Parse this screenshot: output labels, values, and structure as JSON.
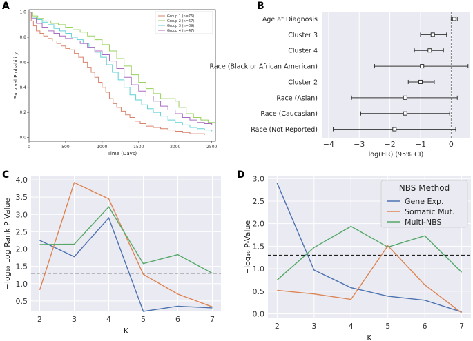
{
  "panel_labels": {
    "a": "A",
    "b": "B",
    "c": "C",
    "d": "D"
  },
  "colors": {
    "blue": "#4c72b0",
    "orange": "#dd8452",
    "green": "#55a868",
    "g1": "#d9826b",
    "g2": "#99d05e",
    "g3": "#62d0d6",
    "g4": "#a86ec2",
    "bg": "#eaeaf2"
  },
  "chart_data": [
    {
      "id": "A",
      "type": "line",
      "title": "",
      "xlabel": "Time (Days)",
      "ylabel": "Survival Probability",
      "xlim": [
        0,
        2550
      ],
      "ylim": [
        -0.03,
        1.02
      ],
      "xticks": [
        "0",
        "500",
        "1000",
        "1500",
        "2000",
        "2500"
      ],
      "yticks": [
        "0.0",
        "0.2",
        "0.4",
        "0.6",
        "0.8",
        "1.0"
      ],
      "legend_position": "top-right",
      "series": [
        {
          "name": "Group 1 (n=76)",
          "color": "#d9826b",
          "step": true,
          "x": [
            0,
            30,
            60,
            100,
            150,
            200,
            260,
            320,
            380,
            440,
            500,
            560,
            620,
            680,
            740,
            800,
            850,
            900,
            950,
            1000,
            1050,
            1100,
            1150,
            1200,
            1260,
            1320,
            1380,
            1450,
            1520,
            1600,
            1700,
            1800,
            1900,
            2000,
            2100,
            2200,
            2300,
            2400
          ],
          "y": [
            1.0,
            0.93,
            0.89,
            0.85,
            0.83,
            0.81,
            0.79,
            0.77,
            0.75,
            0.73,
            0.71,
            0.7,
            0.67,
            0.64,
            0.6,
            0.56,
            0.52,
            0.48,
            0.44,
            0.4,
            0.36,
            0.31,
            0.27,
            0.24,
            0.21,
            0.18,
            0.16,
            0.13,
            0.11,
            0.09,
            0.08,
            0.07,
            0.06,
            0.05,
            0.04,
            0.03,
            0.03,
            0.02
          ]
        },
        {
          "name": "Group 2 (n=67)",
          "color": "#99d05e",
          "step": true,
          "x": [
            0,
            50,
            120,
            200,
            300,
            400,
            500,
            600,
            700,
            800,
            900,
            1000,
            1100,
            1200,
            1300,
            1400,
            1500,
            1600,
            1700,
            1800,
            1900,
            2000,
            2050,
            2150,
            2250,
            2350,
            2450,
            2550
          ],
          "y": [
            1.0,
            0.97,
            0.95,
            0.93,
            0.91,
            0.9,
            0.88,
            0.86,
            0.84,
            0.81,
            0.78,
            0.74,
            0.69,
            0.63,
            0.57,
            0.5,
            0.44,
            0.39,
            0.35,
            0.31,
            0.31,
            0.29,
            0.24,
            0.19,
            0.16,
            0.14,
            0.12,
            0.12
          ]
        },
        {
          "name": "Group 3 (n=89)",
          "color": "#62d0d6",
          "step": true,
          "x": [
            0,
            40,
            100,
            180,
            260,
            340,
            420,
            500,
            580,
            660,
            740,
            820,
            900,
            980,
            1060,
            1140,
            1220,
            1300,
            1380,
            1460,
            1540,
            1620,
            1700,
            1800,
            1900,
            2000,
            2100,
            2200,
            2300,
            2400,
            2500
          ],
          "y": [
            1.0,
            0.96,
            0.94,
            0.92,
            0.9,
            0.87,
            0.85,
            0.83,
            0.8,
            0.78,
            0.75,
            0.72,
            0.68,
            0.64,
            0.58,
            0.52,
            0.46,
            0.4,
            0.34,
            0.3,
            0.26,
            0.23,
            0.2,
            0.17,
            0.14,
            0.12,
            0.1,
            0.08,
            0.07,
            0.06,
            0.05
          ]
        },
        {
          "name": "Group 4 (n=47)",
          "color": "#a86ec2",
          "step": true,
          "x": [
            0,
            40,
            100,
            180,
            260,
            340,
            420,
            500,
            600,
            700,
            800,
            900,
            1000,
            1100,
            1200,
            1300,
            1400,
            1500,
            1600,
            1700,
            1800,
            1900,
            2000,
            2100,
            2200,
            2300,
            2400,
            2500
          ],
          "y": [
            1.0,
            0.95,
            0.91,
            0.88,
            0.85,
            0.83,
            0.81,
            0.79,
            0.77,
            0.75,
            0.72,
            0.69,
            0.66,
            0.61,
            0.55,
            0.48,
            0.42,
            0.37,
            0.33,
            0.29,
            0.25,
            0.22,
            0.19,
            0.16,
            0.14,
            0.12,
            0.11,
            0.1
          ]
        }
      ]
    },
    {
      "id": "B",
      "type": "scatter",
      "subtype": "forest",
      "xlabel": "log(HR) (95% CI)",
      "ylabel": "",
      "xlim": [
        -4.2,
        0.6
      ],
      "xticks": [
        -4,
        -3,
        -2,
        -1,
        0
      ],
      "xtick_labels": [
        "−4",
        "−3",
        "−2",
        "−1",
        "0"
      ],
      "reference_line": 0,
      "items": [
        {
          "label": "Age at Diagnosis",
          "hr": 0.1,
          "lo": 0.0,
          "hi": 0.2
        },
        {
          "label": "Cluster 3",
          "hr": -0.6,
          "lo": -1.0,
          "hi": -0.15
        },
        {
          "label": "Cluster 4",
          "hr": -0.7,
          "lo": -1.2,
          "hi": -0.25
        },
        {
          "label": "Race (Black or African American)",
          "hr": -0.95,
          "lo": -2.5,
          "hi": 0.55
        },
        {
          "label": "Cluster 2",
          "hr": -1.0,
          "lo": -1.4,
          "hi": -0.55
        },
        {
          "label": "Race (Asian)",
          "hr": -1.5,
          "lo": -3.25,
          "hi": 0.2
        },
        {
          "label": "Race (Caucasian)",
          "hr": -1.5,
          "lo": -2.95,
          "hi": -0.05
        },
        {
          "label": "Race (Not Reported)",
          "hr": -1.85,
          "lo": -3.85,
          "hi": 0.15
        }
      ]
    },
    {
      "id": "C",
      "type": "line",
      "xlabel": "K",
      "ylabel": "−log₁₀ Log Rank P Value",
      "x": [
        2,
        3,
        4,
        5,
        6,
        7
      ],
      "xlim": [
        1.75,
        7.25
      ],
      "ylim": [
        0.2,
        4.1
      ],
      "yticks": [
        "0.5",
        "1.0",
        "1.5",
        "2.0",
        "2.5",
        "3.0",
        "3.5",
        "4.0"
      ],
      "threshold": 1.3,
      "series": [
        {
          "name": "Gene Exp.",
          "color": "#4c72b0",
          "values": [
            2.25,
            1.78,
            2.9,
            0.2,
            0.35,
            0.3
          ]
        },
        {
          "name": "Somatic Mut.",
          "color": "#dd8452",
          "values": [
            0.82,
            3.92,
            3.45,
            1.27,
            0.7,
            0.33
          ]
        },
        {
          "name": "Multi-NBS",
          "color": "#55a868",
          "values": [
            2.13,
            2.14,
            3.22,
            1.58,
            1.84,
            1.3
          ]
        }
      ]
    },
    {
      "id": "D",
      "type": "line",
      "xlabel": "K",
      "ylabel": "−log₁₀ P-Value",
      "x": [
        2,
        3,
        4,
        5,
        6,
        7
      ],
      "xlim": [
        1.75,
        7.25
      ],
      "ylim": [
        -0.1,
        3.05
      ],
      "yticks": [
        "0.0",
        "0.5",
        "1.0",
        "1.5",
        "2.0",
        "2.5",
        "3.0"
      ],
      "threshold": 1.3,
      "legend_title": "NBS Method",
      "legend_position": "top-right",
      "series": [
        {
          "name": "Gene Exp.",
          "color": "#4c72b0",
          "values": [
            2.9,
            0.97,
            0.58,
            0.39,
            0.3,
            0.04
          ]
        },
        {
          "name": "Somatic Mut.",
          "color": "#dd8452",
          "values": [
            0.52,
            0.44,
            0.32,
            1.51,
            0.64,
            0.02
          ]
        },
        {
          "name": "Multi-NBS",
          "color": "#55a868",
          "values": [
            0.75,
            1.47,
            1.94,
            1.48,
            1.73,
            0.92
          ]
        }
      ]
    }
  ]
}
